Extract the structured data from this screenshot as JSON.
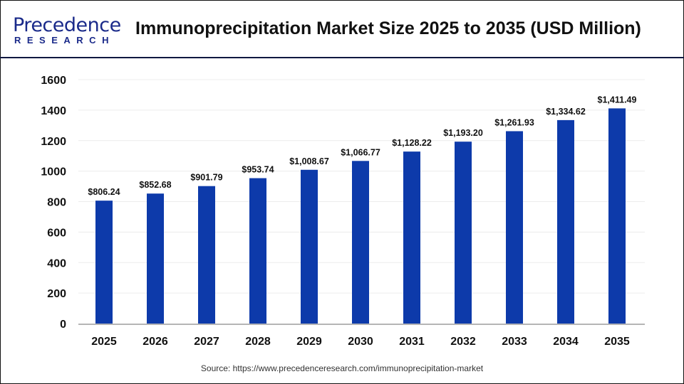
{
  "logo": {
    "text": "Precedence",
    "subtext": "RESEARCH"
  },
  "title": "Immunoprecipitation Market Size 2025 to 2035 (USD Million)",
  "source": "Source: https://www.precedenceresearch.com/immunoprecipitation-market",
  "chart_data": {
    "type": "bar",
    "title": "Immunoprecipitation Market Size 2025 to 2035 (USD Million)",
    "categories": [
      "2025",
      "2026",
      "2027",
      "2028",
      "2029",
      "2030",
      "2031",
      "2032",
      "2033",
      "2034",
      "2035"
    ],
    "values": [
      806.24,
      852.68,
      901.79,
      953.74,
      1008.67,
      1066.77,
      1128.22,
      1193.2,
      1261.93,
      1334.62,
      1411.49
    ],
    "data_labels": [
      "$806.24",
      "$852.68",
      "$901.79",
      "$953.74",
      "$1,008.67",
      "$1,066.77",
      "$1,128.22",
      "$1,193.20",
      "$1,261.93",
      "$1,334.62",
      "$1,411.49"
    ],
    "ylim": [
      0,
      1600
    ],
    "yticks": [
      "0",
      "200",
      "400",
      "600",
      "800",
      "1000",
      "1200",
      "1400",
      "1600"
    ],
    "grid": true,
    "bar_color": "#0d3aaa"
  }
}
